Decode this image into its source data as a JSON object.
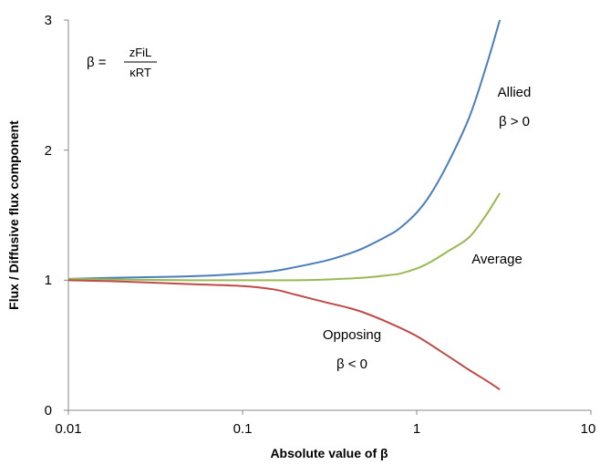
{
  "chart_data": {
    "type": "line",
    "xscale": "log",
    "xlim": [
      0.01,
      10
    ],
    "ylim": [
      0,
      3
    ],
    "xticks": [
      "0.01",
      "0.1",
      "1",
      "10"
    ],
    "xtick_values": [
      0.01,
      0.1,
      1,
      10
    ],
    "yticks": [
      "0",
      "1",
      "2",
      "3"
    ],
    "ytick_values": [
      0,
      1,
      2,
      3
    ],
    "xlabel": "Absolute value of β",
    "ylabel": "Flux / Diffusive flux component",
    "grid": false,
    "series": [
      {
        "name": "Allied",
        "color": "#4a7ebb",
        "x": [
          0.01,
          0.02,
          0.05,
          0.1,
          0.15,
          0.2,
          0.3,
          0.4,
          0.5,
          0.7,
          0.8,
          1.0,
          1.2,
          1.5,
          2.0,
          2.5,
          3.0
        ],
        "y": [
          1.01,
          1.02,
          1.03,
          1.05,
          1.07,
          1.1,
          1.15,
          1.2,
          1.25,
          1.35,
          1.4,
          1.52,
          1.66,
          1.89,
          2.25,
          2.64,
          3.0
        ]
      },
      {
        "name": "Average",
        "color": "#98b954",
        "x": [
          0.01,
          0.05,
          0.1,
          0.2,
          0.3,
          0.5,
          0.7,
          0.8,
          1.0,
          1.2,
          1.5,
          2.0,
          2.5,
          3.0
        ],
        "y": [
          1.01,
          1.0,
          1.0,
          1.0,
          1.005,
          1.02,
          1.04,
          1.05,
          1.09,
          1.14,
          1.22,
          1.33,
          1.5,
          1.67
        ]
      },
      {
        "name": "Opposing",
        "color": "#be4b48",
        "x": [
          0.01,
          0.02,
          0.05,
          0.1,
          0.15,
          0.2,
          0.3,
          0.4,
          0.5,
          0.7,
          1.0,
          1.5,
          2.0,
          2.5,
          3.0
        ],
        "y": [
          1.0,
          0.99,
          0.97,
          0.955,
          0.93,
          0.89,
          0.83,
          0.79,
          0.75,
          0.67,
          0.57,
          0.42,
          0.31,
          0.23,
          0.16
        ]
      }
    ],
    "annotations": {
      "allied_line1": "Allied",
      "allied_line2": "β > 0",
      "average": "Average",
      "opposing_line1": "Opposing",
      "opposing_line2": "β < 0",
      "eq_lhs": "β =",
      "eq_numerator": "zFiL",
      "eq_denominator": "κRT"
    }
  }
}
